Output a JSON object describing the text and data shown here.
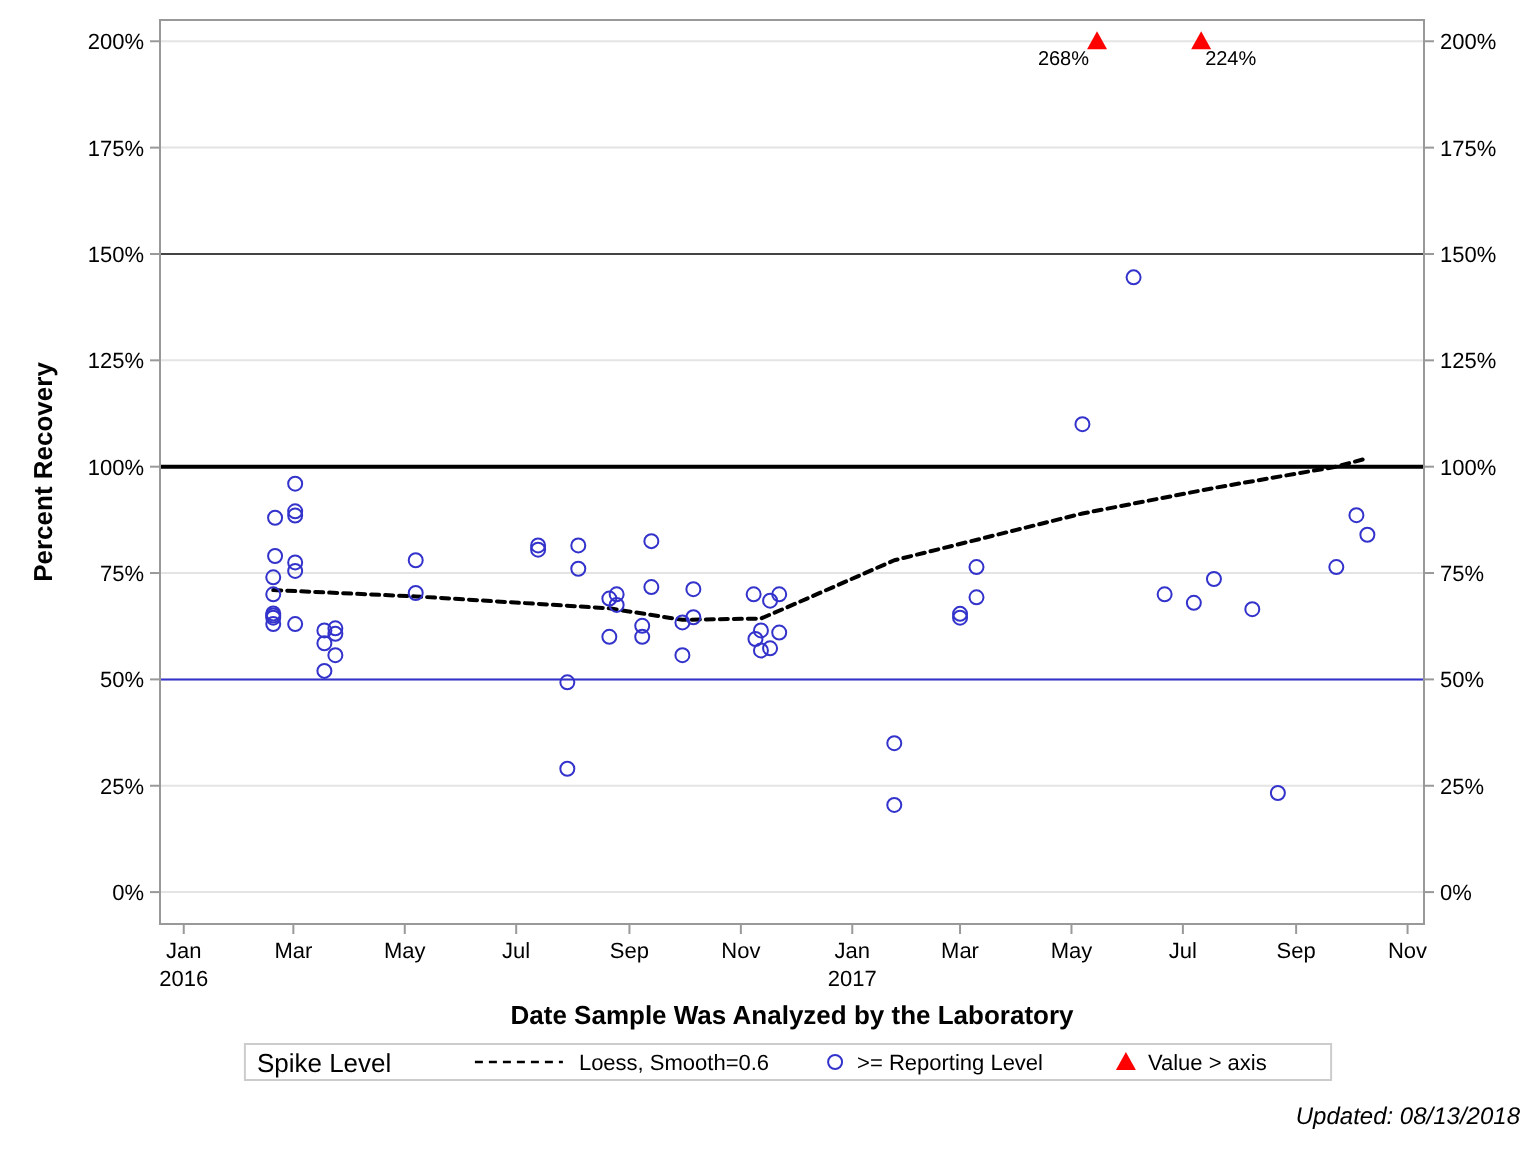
{
  "chart_data": {
    "type": "scatter",
    "xlabel": "Date Sample Was Analyzed by the Laboratory",
    "ylabel": "Percent Recovery",
    "legend_title": "Spike Level",
    "legend": "bottom",
    "grid": "y",
    "xlim": [
      "2015-12-19",
      "2017-11-10"
    ],
    "xticks": [
      {
        "value": "2016-01",
        "label": "Jan 2016"
      },
      {
        "value": "2016-03",
        "label": "Mar"
      },
      {
        "value": "2016-05",
        "label": "May"
      },
      {
        "value": "2016-07",
        "label": "Jul"
      },
      {
        "value": "2016-09",
        "label": "Sep"
      },
      {
        "value": "2016-11",
        "label": "Nov"
      },
      {
        "value": "2017-01",
        "label": "Jan 2017"
      },
      {
        "value": "2017-03",
        "label": "Mar"
      },
      {
        "value": "2017-05",
        "label": "May"
      },
      {
        "value": "2017-07",
        "label": "Jul"
      },
      {
        "value": "2017-09",
        "label": "Sep"
      },
      {
        "value": "2017-11",
        "label": "Nov"
      }
    ],
    "ylim": [
      -7.5,
      205
    ],
    "yticks": [
      {
        "value": 0,
        "label": "0%"
      },
      {
        "value": 25,
        "label": "25%"
      },
      {
        "value": 50,
        "label": "50%"
      },
      {
        "value": 75,
        "label": "75%"
      },
      {
        "value": 100,
        "label": "100%"
      },
      {
        "value": 125,
        "label": "125%"
      },
      {
        "value": 150,
        "label": "150%"
      },
      {
        "value": 175,
        "label": "175%"
      },
      {
        "value": 200,
        "label": "200%"
      }
    ],
    "y2lim": [
      -7.5,
      205
    ],
    "y2ticks": [
      {
        "value": 0,
        "label": "0%"
      },
      {
        "value": 25,
        "label": "25%"
      },
      {
        "value": 50,
        "label": "50%"
      },
      {
        "value": 75,
        "label": "75%"
      },
      {
        "value": 100,
        "label": "100%"
      },
      {
        "value": 125,
        "label": "125%"
      },
      {
        "value": 150,
        "label": "150%"
      },
      {
        "value": 175,
        "label": "175%"
      },
      {
        "value": 200,
        "label": "200%"
      }
    ],
    "ref_lines": [
      {
        "axis": "y",
        "value": 150,
        "color": "#444444"
      },
      {
        "axis": "y",
        "value": 100,
        "color": "#000000"
      },
      {
        "axis": "y",
        "value": 50,
        "color": "#3333cc"
      }
    ],
    "series": [
      {
        "name": "Loess, Smooth=0.6",
        "type": "line",
        "line_style": "dashed",
        "marker": "none",
        "color": "#000000",
        "x": [
          "2016-02-19",
          "2016-05-07",
          "2016-07-03",
          "2016-08-21",
          "2016-09-30",
          "2016-11-12",
          "2016-12-03",
          "2017-01-24",
          "2017-05-07",
          "2017-07-18",
          "2017-09-23",
          "2017-10-10"
        ],
        "values": [
          71,
          69.5,
          68,
          66.7,
          64,
          64.3,
          68.2,
          78,
          89,
          95,
          100,
          102
        ]
      },
      {
        "name": ">= Reporting Level",
        "marker": "circle",
        "color": "#3333cc",
        "x": [
          "2016-02-19",
          "2016-02-19",
          "2016-02-19",
          "2016-02-19",
          "2016-02-19",
          "2016-02-19",
          "2016-02-20",
          "2016-02-20",
          "2016-03-02",
          "2016-03-02",
          "2016-03-02",
          "2016-03-02",
          "2016-03-02",
          "2016-03-02",
          "2016-03-18",
          "2016-03-18",
          "2016-03-18",
          "2016-03-24",
          "2016-03-24",
          "2016-03-24",
          "2016-05-07",
          "2016-05-07",
          "2016-07-13",
          "2016-07-13",
          "2016-07-29",
          "2016-07-29",
          "2016-08-04",
          "2016-08-04",
          "2016-08-21",
          "2016-08-21",
          "2016-08-25",
          "2016-08-25",
          "2016-09-08",
          "2016-09-08",
          "2016-09-13",
          "2016-09-13",
          "2016-09-30",
          "2016-09-30",
          "2016-10-06",
          "2016-10-06",
          "2016-11-08",
          "2016-11-09",
          "2016-11-12",
          "2016-11-12",
          "2016-11-17",
          "2016-11-17",
          "2016-11-22",
          "2016-11-22",
          "2017-01-24",
          "2017-01-24",
          "2017-03-01",
          "2017-03-01",
          "2017-03-10",
          "2017-03-10",
          "2017-05-07",
          "2017-06-04",
          "2017-06-21",
          "2017-07-07",
          "2017-07-18",
          "2017-08-08",
          "2017-08-22",
          "2017-09-23",
          "2017-10-04",
          "2017-10-10"
        ],
        "values": [
          74,
          70,
          65,
          64.5,
          65.5,
          63,
          88,
          79,
          96,
          89.5,
          88.5,
          77.5,
          75.5,
          63,
          61.5,
          58.5,
          52,
          62,
          60.7,
          55.7,
          78,
          70.3,
          81.5,
          80.5,
          49.3,
          29,
          81.5,
          76,
          69,
          60,
          70,
          67.5,
          62.6,
          60,
          82.5,
          71.7,
          63.4,
          55.7,
          71.2,
          64.6,
          70,
          59.5,
          61.5,
          56.8,
          68.5,
          57.3,
          70,
          61,
          35,
          20.5,
          65.4,
          64.5,
          76.4,
          69.3,
          110,
          144.5,
          70,
          68,
          73.6,
          66.5,
          23.3,
          76.4,
          88.6,
          84
        ]
      },
      {
        "name": "Value > axis",
        "marker": "triangle",
        "color": "#ff0000",
        "x": [
          "2017-05-15",
          "2017-07-11"
        ],
        "values": [
          200,
          200
        ]
      }
    ],
    "annotations": [
      {
        "text": "268%",
        "x": "2017-05-15",
        "y": 200
      },
      {
        "text": "224%",
        "x": "2017-07-11",
        "y": 200
      },
      "Updated: 08/13/2018"
    ]
  }
}
